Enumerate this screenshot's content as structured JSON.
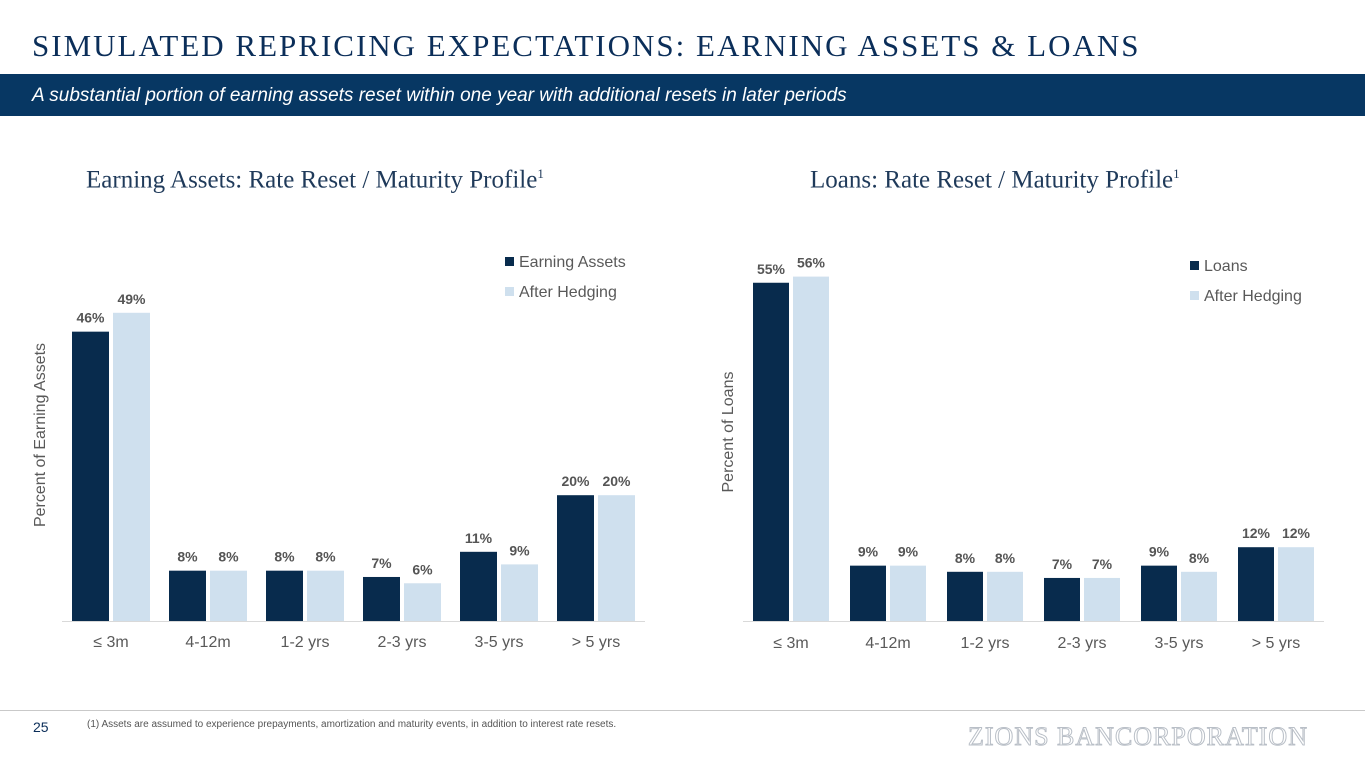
{
  "header": {
    "title": "SIMULATED REPRICING EXPECTATIONS: EARNING ASSETS & LOANS",
    "subtitle": "A substantial portion of earning assets reset within one year with additional resets in later periods"
  },
  "colors": {
    "dark": "#082b4d",
    "light": "#cfe0ee",
    "banner": "#073763"
  },
  "chart_data": [
    {
      "type": "bar",
      "title": "Earning Assets: Rate Reset / Maturity Profile",
      "title_sup": "1",
      "ylabel": "Percent of Earning Assets",
      "categories": [
        "≤ 3m",
        "4-12m",
        "1-2 yrs",
        "2-3 yrs",
        "3-5 yrs",
        "> 5 yrs"
      ],
      "series": [
        {
          "name": "Earning Assets",
          "values": [
            46,
            8,
            8,
            7,
            11,
            20
          ],
          "labels": [
            "46%",
            "8%",
            "8%",
            "7%",
            "11%",
            "20%"
          ]
        },
        {
          "name": "After Hedging",
          "values": [
            49,
            8,
            8,
            6,
            9,
            20
          ],
          "labels": [
            "49%",
            "8%",
            "8%",
            "6%",
            "9%",
            "20%"
          ]
        }
      ],
      "ylim": [
        0,
        60
      ],
      "legend": "top-right"
    },
    {
      "type": "bar",
      "title": "Loans: Rate Reset / Maturity Profile",
      "title_sup": "1",
      "ylabel": "Percent of Loans",
      "categories": [
        "≤ 3m",
        "4-12m",
        "1-2 yrs",
        "2-3 yrs",
        "3-5 yrs",
        "> 5 yrs"
      ],
      "series": [
        {
          "name": "Loans",
          "values": [
            55,
            9,
            8,
            7,
            9,
            12
          ],
          "labels": [
            "55%",
            "9%",
            "8%",
            "7%",
            "9%",
            "12%"
          ]
        },
        {
          "name": "After Hedging",
          "values": [
            56,
            9,
            8,
            7,
            8,
            12
          ],
          "labels": [
            "56%",
            "9%",
            "8%",
            "7%",
            "8%",
            "12%"
          ]
        }
      ],
      "ylim": [
        0,
        60
      ],
      "legend": "top-right"
    }
  ],
  "footer": {
    "page_number": "25",
    "footnote": "(1)  Assets are assumed to experience prepayments, amortization and maturity events, in addition to interest rate resets.",
    "logo_text": "ZIONS BANCORPORATION"
  }
}
